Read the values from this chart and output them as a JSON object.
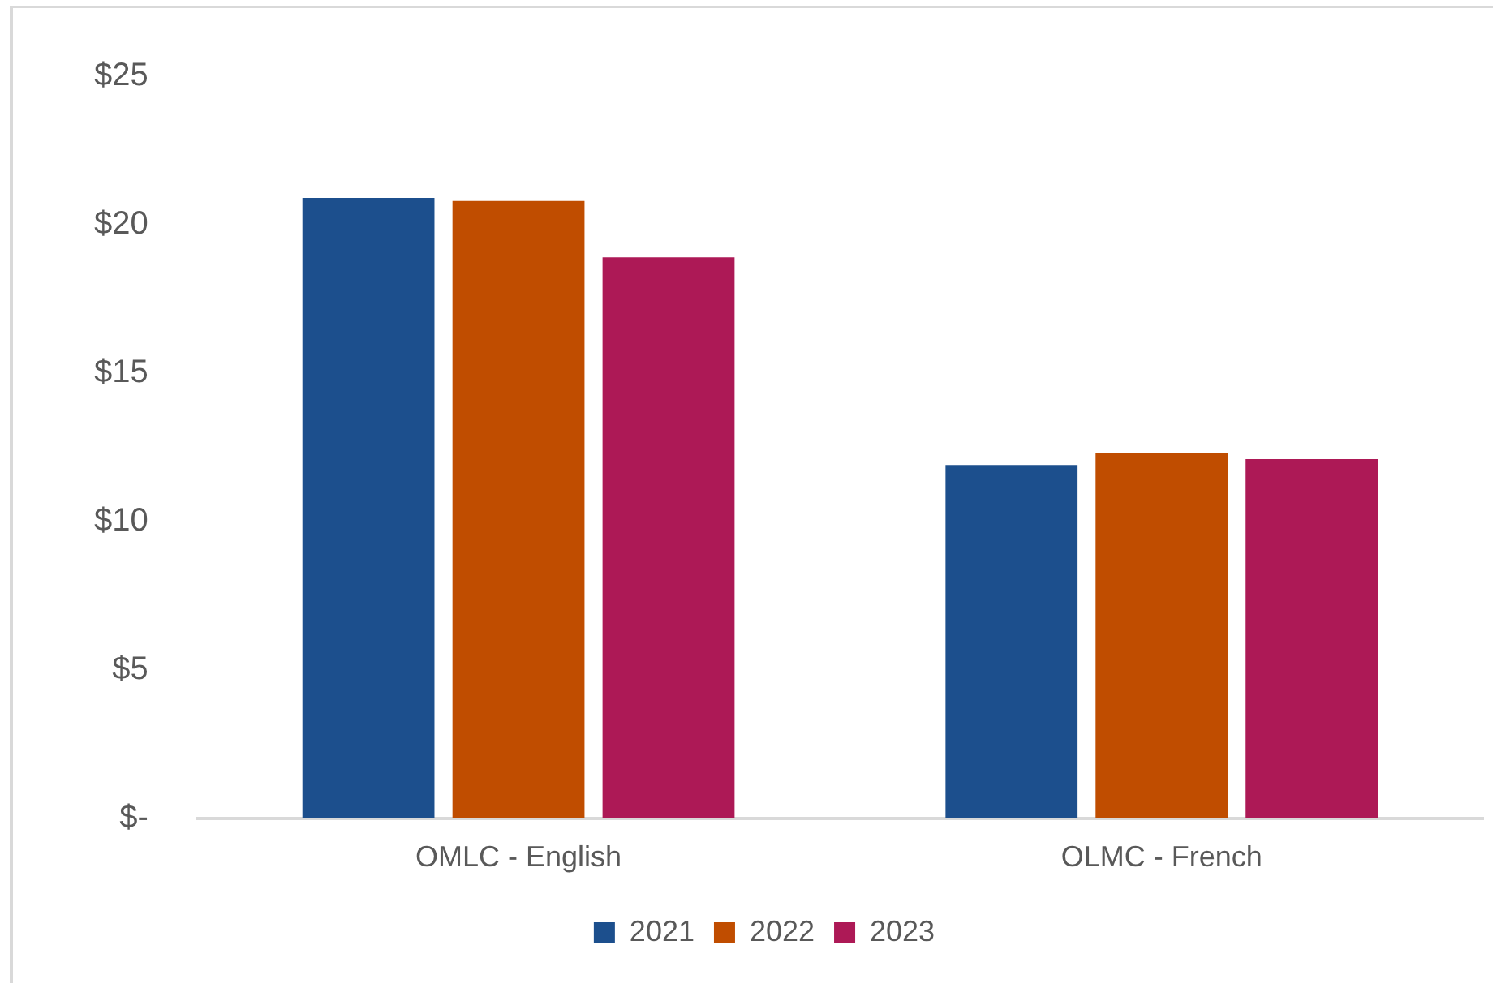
{
  "chart_data": {
    "type": "bar",
    "categories": [
      "OMLC - English",
      "OLMC - French"
    ],
    "series": [
      {
        "name": "2021",
        "color": "#1c4f8d",
        "values": [
          20.9,
          11.9
        ]
      },
      {
        "name": "2022",
        "color": "#c04d00",
        "values": [
          20.8,
          12.3
        ]
      },
      {
        "name": "2023",
        "color": "#ad1956",
        "values": [
          18.9,
          12.1
        ]
      }
    ],
    "ylim": [
      0,
      25
    ],
    "yticks": [
      {
        "value": 0,
        "label": "$-"
      },
      {
        "value": 5,
        "label": "$5"
      },
      {
        "value": 10,
        "label": "$10"
      },
      {
        "value": 15,
        "label": "$15"
      },
      {
        "value": 20,
        "label": "$20"
      },
      {
        "value": 25,
        "label": "$25"
      }
    ],
    "grid": false,
    "legend": "bottom"
  }
}
